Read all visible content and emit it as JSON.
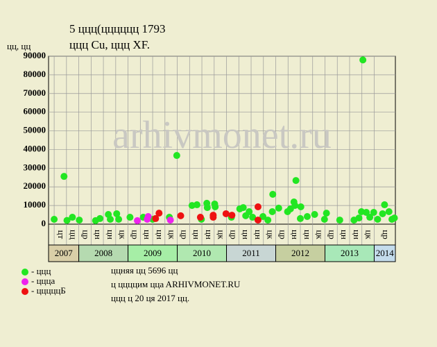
{
  "chart_data": {
    "type": "scatter",
    "title": "5 ццц(цццццц 1793",
    "subtitle": "ццц Cu, ццц XF.",
    "y_label": "цц, цц",
    "watermark": "arhivmonet.ru",
    "xlim": [
      2007.386,
      2014.43
    ],
    "ylim": [
      0,
      90000
    ],
    "yticks": [
      0,
      10000,
      20000,
      30000,
      40000,
      50000,
      60000,
      70000,
      80000,
      90000
    ],
    "xticks": [
      {
        "value": 2007.5,
        "label": "цт"
      },
      {
        "value": 2007.75,
        "label": "цц"
      },
      {
        "value": 2008,
        "label": "цр"
      },
      {
        "value": 2008.25,
        "label": "цн"
      },
      {
        "value": 2008.5,
        "label": "цн"
      },
      {
        "value": 2008.75,
        "label": "цк"
      },
      {
        "value": 2009,
        "label": "цр"
      },
      {
        "value": 2009.25,
        "label": "цн"
      },
      {
        "value": 2009.5,
        "label": "цн"
      },
      {
        "value": 2009.75,
        "label": "цк"
      },
      {
        "value": 2010,
        "label": "цр"
      },
      {
        "value": 2010.25,
        "label": "цн"
      },
      {
        "value": 2010.5,
        "label": "цн"
      },
      {
        "value": 2010.75,
        "label": "цк"
      },
      {
        "value": 2011,
        "label": "цр"
      },
      {
        "value": 2011.25,
        "label": "цн"
      },
      {
        "value": 2011.5,
        "label": "цн"
      },
      {
        "value": 2011.75,
        "label": "цк"
      },
      {
        "value": 2012,
        "label": "цр"
      },
      {
        "value": 2012.25,
        "label": "цн"
      },
      {
        "value": 2012.5,
        "label": "цн"
      },
      {
        "value": 2012.75,
        "label": "цк"
      },
      {
        "value": 2013,
        "label": "цр"
      },
      {
        "value": 2013.25,
        "label": "цн"
      },
      {
        "value": 2013.5,
        "label": "цн"
      },
      {
        "value": 2013.75,
        "label": "цк"
      },
      {
        "value": 2014,
        "label": "цр"
      }
    ],
    "years": [
      {
        "value": 2007,
        "label": "2007",
        "color": "#d9cfa8"
      },
      {
        "value": 2008,
        "label": "2008",
        "color": "#b5dab0"
      },
      {
        "value": 2009,
        "label": "2009",
        "color": "#a6eea6"
      },
      {
        "value": 2010,
        "label": "2010",
        "color": "#b0e8b0"
      },
      {
        "value": 2011,
        "label": "2011",
        "color": "#c8d6d4"
      },
      {
        "value": 2012,
        "label": "2012",
        "color": "#c6cfa0"
      },
      {
        "value": 2013,
        "label": "2013",
        "color": "#a8e8b8"
      },
      {
        "value": 2014,
        "label": "2014",
        "color": "#c4dcec"
      }
    ],
    "grid": true,
    "series": [
      {
        "name": "- ццц",
        "color": "#22e622",
        "x": [
          2007.5,
          2007.7,
          2007.76,
          2007.87,
          2008.01,
          2008.34,
          2008.43,
          2008.6,
          2008.64,
          2008.77,
          2008.81,
          2009.04,
          2009.31,
          2009.5,
          2009.84,
          2009.99,
          2010.3,
          2010.4,
          2010.49,
          2010.6,
          2010.61,
          2010.76,
          2010.77,
          2011.1,
          2011.27,
          2011.34,
          2011.39,
          2011.46,
          2011.53,
          2011.74,
          2011.84,
          2011.93,
          2011.94,
          2012.06,
          2012.24,
          2012.3,
          2012.37,
          2012.39,
          2012.41,
          2012.5,
          2012.51,
          2012.64,
          2012.79,
          2012.99,
          2013.03,
          2013.3,
          2013.59,
          2013.69,
          2013.74,
          2013.77,
          2013.84,
          2013.91,
          2013.99,
          2014.07,
          2014.17,
          2014.21,
          2014.3,
          2014.36,
          2014.41
        ],
        "values": [
          2600,
          25600,
          2000,
          3700,
          2200,
          1900,
          3000,
          5200,
          2600,
          5600,
          2600,
          3700,
          3700,
          2600,
          3700,
          36800,
          10000,
          10400,
          2600,
          11200,
          8900,
          10800,
          9300,
          3700,
          8200,
          8900,
          4500,
          6700,
          3700,
          4100,
          2200,
          6700,
          16000,
          8600,
          6700,
          8200,
          11900,
          10000,
          23400,
          3000,
          9300,
          4100,
          5200,
          2600,
          5900,
          2200,
          2200,
          3300,
          6700,
          88000,
          6300,
          3700,
          6300,
          2600,
          5600,
          10400,
          6700,
          2600,
          3300
        ]
      },
      {
        "name": "- цццa",
        "color": "#ee22ee",
        "x": [
          2009.19,
          2009.39,
          2009.41,
          2009.86
        ],
        "values": [
          1900,
          2600,
          4100,
          2200
        ]
      },
      {
        "name": "- цццццБ",
        "color": "#ee1111",
        "x": [
          2009.56,
          2009.63,
          2010.07,
          2010.47,
          2010.73,
          2010.73,
          2010.99,
          2011.11,
          2011.64,
          2011.64
        ],
        "values": [
          3000,
          5900,
          4500,
          3700,
          3700,
          4800,
          5600,
          4800,
          9300,
          2200
        ]
      }
    ],
    "notes": [
      "ццняя цц 5696 цц",
      "ц ццццим ццa ARHIVMONET.RU",
      "ццц ц 20 ця 2017 цц."
    ]
  }
}
